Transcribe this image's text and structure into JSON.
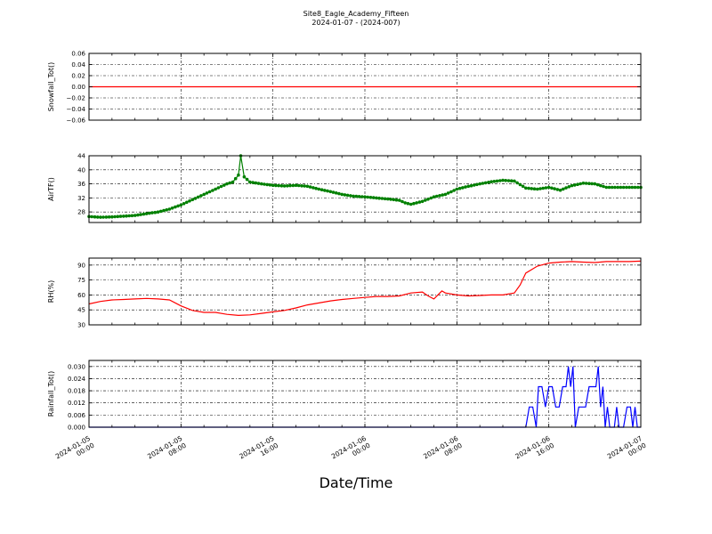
{
  "title": "Site8_Eagle_Academy_Fifteen",
  "subtitle": "2024-01-07 - (2024-007)",
  "xlabel": "Date/Time",
  "x_ticks": [
    {
      "hours": 0,
      "line1": "2024-01-05",
      "line2": "00:00"
    },
    {
      "hours": 8,
      "line1": "2024-01-05",
      "line2": "08:00"
    },
    {
      "hours": 16,
      "line1": "2024-01-05",
      "line2": "16:00"
    },
    {
      "hours": 24,
      "line1": "2024-01-06",
      "line2": "00:00"
    },
    {
      "hours": 32,
      "line1": "2024-01-06",
      "line2": "08:00"
    },
    {
      "hours": 40,
      "line1": "2024-01-06",
      "line2": "16:00"
    },
    {
      "hours": 48,
      "line1": "2024-01-07",
      "line2": "00:00"
    }
  ],
  "chart_data": [
    {
      "type": "line",
      "ylabel": "Snowfall_Tot()",
      "color": "#ff0000",
      "marker": false,
      "ylim": [
        -0.06,
        0.06
      ],
      "yticks": [
        -0.06,
        -0.04,
        -0.02,
        0.0,
        0.02,
        0.04,
        0.06
      ],
      "ytick_labels": [
        "−0.06",
        "−0.04",
        "−0.02",
        "0.00",
        "0.02",
        "0.04",
        "0.06"
      ],
      "grid": true,
      "points": [
        [
          0,
          0
        ],
        [
          48,
          0
        ]
      ]
    },
    {
      "type": "line",
      "ylabel": "AirTF()",
      "color": "#008000",
      "marker": true,
      "ylim": [
        25,
        44
      ],
      "yticks": [
        28,
        32,
        36,
        40,
        44
      ],
      "ytick_labels": [
        "28",
        "32",
        "36",
        "40",
        "44"
      ],
      "grid": true,
      "points": [
        [
          0,
          26.7
        ],
        [
          1,
          26.5
        ],
        [
          2,
          26.6
        ],
        [
          3,
          26.8
        ],
        [
          4,
          27.0
        ],
        [
          5,
          27.5
        ],
        [
          6,
          28.0
        ],
        [
          7,
          28.8
        ],
        [
          8,
          30.0
        ],
        [
          9,
          31.5
        ],
        [
          10,
          33.0
        ],
        [
          11,
          34.5
        ],
        [
          12,
          36.0
        ],
        [
          12.5,
          36.5
        ],
        [
          13,
          38.5
        ],
        [
          13.2,
          44.0
        ],
        [
          13.5,
          38.0
        ],
        [
          14,
          36.5
        ],
        [
          15,
          36.0
        ],
        [
          16,
          35.6
        ],
        [
          17,
          35.4
        ],
        [
          18,
          35.6
        ],
        [
          19,
          35.3
        ],
        [
          20,
          34.5
        ],
        [
          21,
          33.8
        ],
        [
          22,
          33.0
        ],
        [
          23,
          32.5
        ],
        [
          24,
          32.3
        ],
        [
          25,
          32.0
        ],
        [
          26,
          31.7
        ],
        [
          27,
          31.3
        ],
        [
          27.5,
          30.6
        ],
        [
          28,
          30.2
        ],
        [
          29,
          31.0
        ],
        [
          30,
          32.3
        ],
        [
          31,
          33.0
        ],
        [
          32,
          34.5
        ],
        [
          33,
          35.3
        ],
        [
          34,
          36.0
        ],
        [
          35,
          36.6
        ],
        [
          36,
          37.0
        ],
        [
          37,
          36.8
        ],
        [
          38,
          34.8
        ],
        [
          39,
          34.5
        ],
        [
          40,
          35.0
        ],
        [
          41,
          34.2
        ],
        [
          42,
          35.5
        ],
        [
          43,
          36.2
        ],
        [
          44,
          36.0
        ],
        [
          45,
          35.0
        ],
        [
          46,
          35.0
        ],
        [
          47,
          35.0
        ],
        [
          48,
          35.0
        ]
      ]
    },
    {
      "type": "line",
      "ylabel": "RH(%)",
      "color": "#ff0000",
      "marker": false,
      "ylim": [
        30,
        97
      ],
      "yticks": [
        30,
        45,
        60,
        75,
        90
      ],
      "ytick_labels": [
        "30",
        "45",
        "60",
        "75",
        "90"
      ],
      "grid": true,
      "points": [
        [
          0,
          51
        ],
        [
          1,
          53.5
        ],
        [
          2,
          55
        ],
        [
          3,
          55.5
        ],
        [
          4,
          56
        ],
        [
          5,
          56.5
        ],
        [
          6,
          56
        ],
        [
          7,
          55
        ],
        [
          8,
          49
        ],
        [
          9,
          44.5
        ],
        [
          10,
          42.5
        ],
        [
          11,
          42.5
        ],
        [
          12,
          40.5
        ],
        [
          13,
          39.5
        ],
        [
          14,
          40
        ],
        [
          15,
          41.5
        ],
        [
          16,
          43
        ],
        [
          17,
          44.5
        ],
        [
          18,
          47
        ],
        [
          19,
          50
        ],
        [
          20,
          52
        ],
        [
          21,
          54
        ],
        [
          22,
          55.5
        ],
        [
          23,
          56.5
        ],
        [
          24,
          57.5
        ],
        [
          25,
          58.5
        ],
        [
          26,
          58.5
        ],
        [
          27,
          59
        ],
        [
          28,
          62
        ],
        [
          29,
          63
        ],
        [
          29.5,
          59
        ],
        [
          30,
          56
        ],
        [
          30.7,
          64
        ],
        [
          31,
          62
        ],
        [
          32,
          60
        ],
        [
          33,
          59
        ],
        [
          34,
          59.5
        ],
        [
          35,
          60
        ],
        [
          36,
          60
        ],
        [
          37,
          62
        ],
        [
          37.5,
          70
        ],
        [
          38,
          82
        ],
        [
          39,
          89
        ],
        [
          40,
          92
        ],
        [
          41,
          93
        ],
        [
          42,
          93.5
        ],
        [
          43,
          93
        ],
        [
          44,
          92.5
        ],
        [
          45,
          93.5
        ],
        [
          46,
          93.5
        ],
        [
          47,
          93.5
        ],
        [
          48,
          94
        ]
      ]
    },
    {
      "type": "line",
      "ylabel": "Rainfall_Tot()",
      "color": "#0000ff",
      "marker": false,
      "ylim": [
        0,
        0.033
      ],
      "yticks": [
        0.0,
        0.006,
        0.012,
        0.018,
        0.024,
        0.03
      ],
      "ytick_labels": [
        "0.000",
        "0.006",
        "0.012",
        "0.018",
        "0.024",
        "0.030"
      ],
      "grid": true,
      "points": [
        [
          0,
          0
        ],
        [
          38,
          0
        ],
        [
          38.3,
          0.01
        ],
        [
          38.6,
          0.01
        ],
        [
          38.9,
          0
        ],
        [
          39.1,
          0.02
        ],
        [
          39.4,
          0.02
        ],
        [
          39.7,
          0.01
        ],
        [
          40,
          0.02
        ],
        [
          40.3,
          0.02
        ],
        [
          40.6,
          0.01
        ],
        [
          40.9,
          0.01
        ],
        [
          41.2,
          0.02
        ],
        [
          41.5,
          0.02
        ],
        [
          41.7,
          0.03
        ],
        [
          41.9,
          0.02
        ],
        [
          42.1,
          0.03
        ],
        [
          42.3,
          0
        ],
        [
          42.6,
          0.01
        ],
        [
          42.9,
          0.01
        ],
        [
          43.2,
          0.01
        ],
        [
          43.5,
          0.02
        ],
        [
          43.8,
          0.02
        ],
        [
          44.1,
          0.02
        ],
        [
          44.3,
          0.03
        ],
        [
          44.5,
          0.01
        ],
        [
          44.7,
          0.02
        ],
        [
          44.9,
          0
        ],
        [
          45.1,
          0.01
        ],
        [
          45.3,
          0
        ],
        [
          45.7,
          0
        ],
        [
          45.9,
          0.01
        ],
        [
          46.1,
          0
        ],
        [
          46.5,
          0
        ],
        [
          46.8,
          0.01
        ],
        [
          47.1,
          0.01
        ],
        [
          47.3,
          0
        ],
        [
          47.5,
          0.01
        ],
        [
          47.7,
          0
        ],
        [
          48,
          0
        ]
      ]
    }
  ]
}
